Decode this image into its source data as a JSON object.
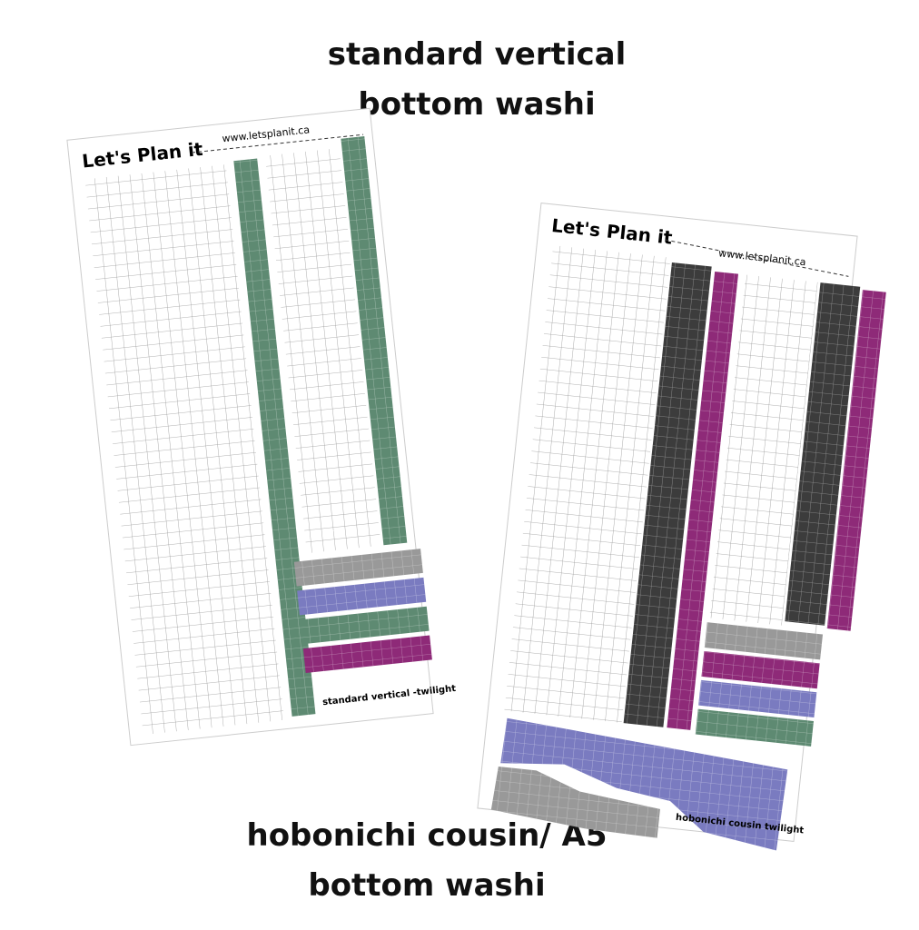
{
  "top_caption": {
    "line1": "standard vertical",
    "line2": "bottom washi"
  },
  "bottom_caption": {
    "line1": "hobonichi cousin/ A5",
    "line2": "bottom washi"
  },
  "sheets": [
    {
      "brand": "Let's Plan it",
      "url": "www.letsplanit.ca",
      "label": "standard vertical -twilight"
    },
    {
      "brand": "Let's Plan it",
      "url": "www.letsplanit.ca",
      "label": "hobonichi cousin twilight"
    }
  ]
}
